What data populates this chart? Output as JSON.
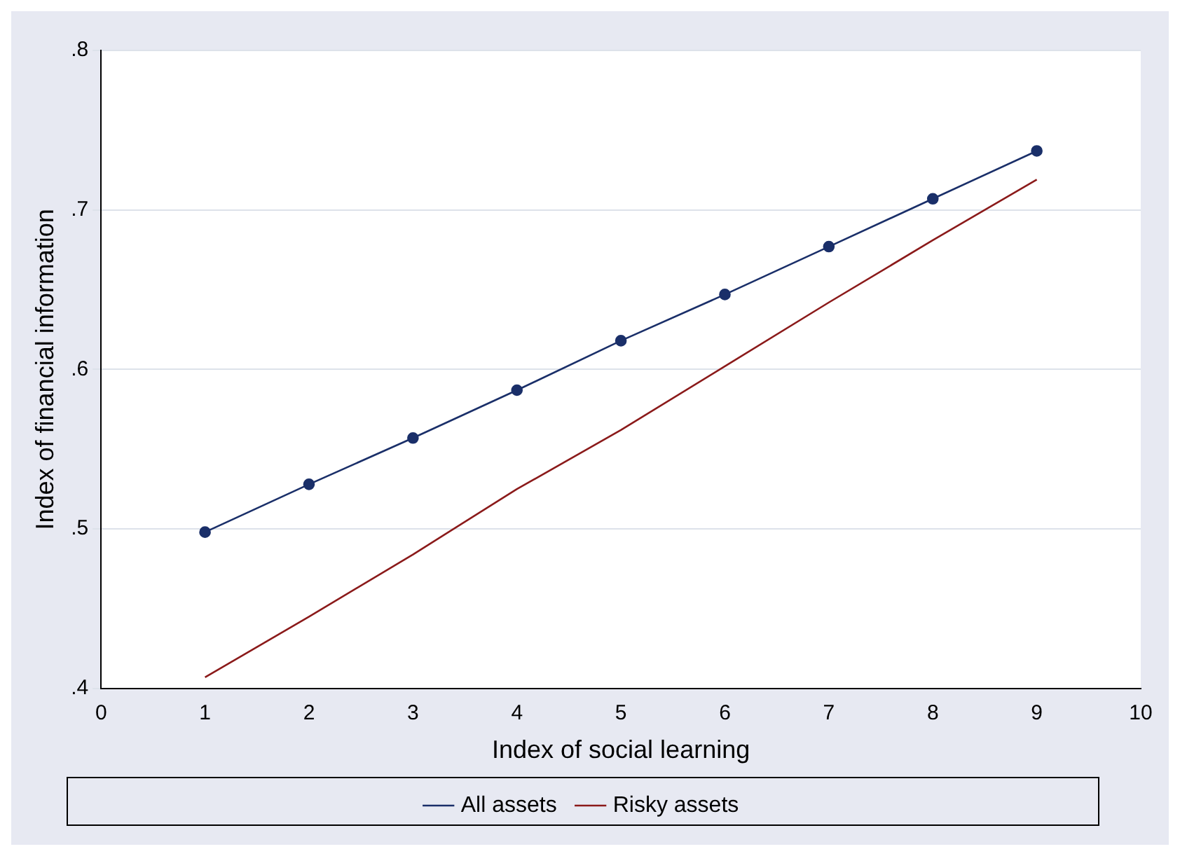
{
  "chart_data": {
    "type": "line",
    "xlabel": "Index of social learning",
    "ylabel": "Index of financial information",
    "x": [
      1,
      2,
      3,
      4,
      5,
      6,
      7,
      8,
      9
    ],
    "series": [
      {
        "name": "All assets",
        "color": "#1a2f69",
        "values": [
          0.498,
          0.528,
          0.557,
          0.587,
          0.618,
          0.647,
          0.677,
          0.707,
          0.737
        ]
      },
      {
        "name": "Risky assets",
        "color": "#8b1a1a",
        "marker": "none",
        "values": [
          0.407,
          0.445,
          0.484,
          0.525,
          0.562,
          0.602,
          0.642,
          0.681,
          0.719
        ]
      }
    ],
    "xlim": [
      0,
      10
    ],
    "xticks": [
      0,
      1,
      2,
      3,
      4,
      5,
      6,
      7,
      8,
      9,
      10
    ],
    "ylim": [
      0.4,
      0.8
    ],
    "yticks": [
      {
        "value": 0.4,
        "label": ".4"
      },
      {
        "value": 0.5,
        "label": ".5"
      },
      {
        "value": 0.6,
        "label": ".6"
      },
      {
        "value": 0.7,
        "label": ".7"
      },
      {
        "value": 0.8,
        "label": ".8"
      }
    ],
    "grid": "y",
    "legend": "bottom",
    "marker": "circle",
    "line_style": "solid"
  }
}
